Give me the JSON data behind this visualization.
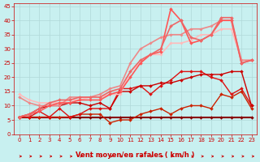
{
  "background_color": "#c8f0f0",
  "grid_color": "#b0d8d8",
  "xlabel": "Vent moyen/en rafales ( km/h )",
  "xlabel_color": "#cc0000",
  "tick_color": "#cc0000",
  "arrow_color": "#cc0000",
  "xlim": [
    -0.5,
    23.5
  ],
  "ylim": [
    0,
    46
  ],
  "xticks": [
    0,
    1,
    2,
    3,
    4,
    5,
    6,
    7,
    8,
    9,
    10,
    11,
    12,
    13,
    14,
    15,
    16,
    17,
    18,
    19,
    20,
    21,
    22,
    23
  ],
  "yticks": [
    0,
    5,
    10,
    15,
    20,
    25,
    30,
    35,
    40,
    45
  ],
  "lines": [
    {
      "x": [
        0,
        1,
        2,
        3,
        4,
        5,
        6,
        7,
        8,
        9,
        10,
        11,
        12,
        13,
        14,
        15,
        16,
        17,
        18,
        19,
        20,
        21,
        22,
        23
      ],
      "y": [
        6,
        6,
        6,
        6,
        6,
        6,
        6,
        6,
        6,
        6,
        6,
        6,
        6,
        6,
        6,
        6,
        6,
        6,
        6,
        6,
        6,
        6,
        6,
        6
      ],
      "color": "#880000",
      "linewidth": 1.5,
      "marker": "D",
      "markersize": 2.0
    },
    {
      "x": [
        0,
        1,
        2,
        3,
        4,
        5,
        6,
        7,
        8,
        9,
        10,
        11,
        12,
        13,
        14,
        15,
        16,
        17,
        18,
        19,
        20,
        21,
        22,
        23
      ],
      "y": [
        6,
        6,
        6,
        6,
        6,
        6,
        7,
        7,
        7,
        4,
        5,
        5,
        7,
        8,
        9,
        7,
        9,
        10,
        10,
        9,
        14,
        13,
        15,
        9
      ],
      "color": "#cc2200",
      "linewidth": 1.0,
      "marker": "D",
      "markersize": 2.0
    },
    {
      "x": [
        0,
        1,
        2,
        3,
        4,
        5,
        6,
        7,
        8,
        9,
        10,
        11,
        12,
        13,
        14,
        15,
        16,
        17,
        18,
        19,
        20,
        21,
        22,
        23
      ],
      "y": [
        6,
        6,
        8,
        6,
        9,
        6,
        7,
        9,
        9,
        9,
        16,
        16,
        17,
        14,
        17,
        19,
        22,
        22,
        22,
        20,
        19,
        14,
        16,
        10
      ],
      "color": "#dd1111",
      "linewidth": 1.0,
      "marker": "D",
      "markersize": 2.0
    },
    {
      "x": [
        0,
        1,
        2,
        3,
        4,
        5,
        6,
        7,
        8,
        9,
        10,
        11,
        12,
        13,
        14,
        15,
        16,
        17,
        18,
        19,
        20,
        21,
        22,
        23
      ],
      "y": [
        6,
        7,
        9,
        10,
        10,
        11,
        11,
        10,
        11,
        9,
        15,
        15,
        17,
        17,
        18,
        18,
        19,
        20,
        21,
        21,
        21,
        22,
        22,
        10
      ],
      "color": "#cc0000",
      "linewidth": 1.0,
      "marker": "D",
      "markersize": 2.0
    },
    {
      "x": [
        0,
        1,
        2,
        3,
        4,
        5,
        6,
        7,
        8,
        9,
        10,
        11,
        12,
        13,
        14,
        15,
        16,
        17,
        18,
        19,
        20,
        21,
        22,
        23
      ],
      "y": [
        14,
        12,
        11,
        11,
        11,
        12,
        12,
        13,
        13,
        14,
        14,
        22,
        25,
        28,
        28,
        32,
        32,
        33,
        35,
        35,
        37,
        37,
        26,
        26
      ],
      "color": "#ffbbbb",
      "linewidth": 1.2,
      "marker": "D",
      "markersize": 1.8
    },
    {
      "x": [
        0,
        1,
        2,
        3,
        4,
        5,
        6,
        7,
        8,
        9,
        10,
        11,
        12,
        13,
        14,
        15,
        16,
        17,
        18,
        19,
        20,
        21,
        22,
        23
      ],
      "y": [
        13,
        11,
        10,
        10,
        10,
        13,
        13,
        13,
        14,
        16,
        17,
        25,
        30,
        32,
        34,
        35,
        35,
        37,
        37,
        38,
        40,
        40,
        26,
        26
      ],
      "color": "#ee8888",
      "linewidth": 1.2,
      "marker": "D",
      "markersize": 1.8
    },
    {
      "x": [
        0,
        1,
        2,
        3,
        4,
        5,
        6,
        7,
        8,
        9,
        10,
        11,
        12,
        13,
        14,
        15,
        16,
        17,
        18,
        19,
        20,
        21,
        22,
        23
      ],
      "y": [
        6,
        7,
        8,
        10,
        11,
        11,
        12,
        12,
        12,
        14,
        15,
        20,
        25,
        28,
        29,
        44,
        40,
        32,
        33,
        35,
        40,
        40,
        25,
        26
      ],
      "color": "#ff5555",
      "linewidth": 1.2,
      "marker": "D",
      "markersize": 2.0
    },
    {
      "x": [
        0,
        1,
        2,
        3,
        4,
        5,
        6,
        7,
        8,
        9,
        10,
        11,
        12,
        13,
        14,
        15,
        16,
        17,
        18,
        19,
        20,
        21,
        22,
        23
      ],
      "y": [
        6,
        7,
        9,
        11,
        12,
        12,
        13,
        13,
        13,
        15,
        16,
        22,
        26,
        28,
        30,
        38,
        40,
        34,
        33,
        35,
        41,
        41,
        25,
        26
      ],
      "color": "#ee6666",
      "linewidth": 1.2,
      "marker": "D",
      "markersize": 2.0
    }
  ]
}
